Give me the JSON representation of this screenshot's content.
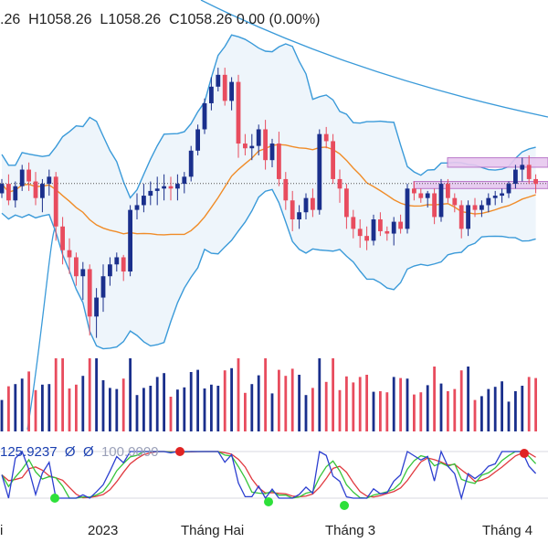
{
  "ohlc_readout": {
    "open_fragment": ".26",
    "high": "H1058.26",
    "low": "L1058.26",
    "close": "C1058.26",
    "change": "0.00 (0.00%)"
  },
  "oscillator_readout": {
    "main_value": "125.9237",
    "symbol_1": "Ø",
    "symbol_2": "Ø",
    "faint_value": "100.0000"
  },
  "x_axis_labels": [
    "i",
    "2023",
    "Tháng Hai",
    "Tháng 3",
    "Tháng 4"
  ],
  "colors": {
    "up_candle": "#1a2f8c",
    "down_candle": "#e84c5e",
    "bollinger_line": "#3a9ad9",
    "bollinger_fill": "#eef5fb",
    "ma_line": "#f08c28",
    "resistance_box": "#e7c8ef",
    "osc_blue": "#2c3fd0",
    "osc_red": "#e0393f",
    "osc_green": "#36c43a",
    "marker_green": "#2ee03a",
    "marker_red": "#e02323"
  },
  "chart_data": {
    "type": "candlestick",
    "candles_ohlc": [
      [
        1050,
        1062,
        1046,
        1058
      ],
      [
        1058,
        1066,
        1040,
        1044
      ],
      [
        1044,
        1060,
        1038,
        1056
      ],
      [
        1056,
        1074,
        1052,
        1070
      ],
      [
        1070,
        1076,
        1052,
        1060
      ],
      [
        1060,
        1068,
        1040,
        1046
      ],
      [
        1046,
        1062,
        1034,
        1058
      ],
      [
        1058,
        1070,
        1048,
        1064
      ],
      [
        1064,
        1068,
        1010,
        1022
      ],
      [
        1022,
        1030,
        990,
        1002
      ],
      [
        1002,
        1012,
        982,
        996
      ],
      [
        996,
        1000,
        972,
        980
      ],
      [
        980,
        992,
        960,
        986
      ],
      [
        986,
        990,
        930,
        946
      ],
      [
        946,
        970,
        928,
        962
      ],
      [
        962,
        990,
        950,
        980
      ],
      [
        980,
        996,
        972,
        990
      ],
      [
        990,
        1000,
        984,
        996
      ],
      [
        996,
        998,
        976,
        984
      ],
      [
        984,
        1040,
        980,
        1036
      ],
      [
        1036,
        1050,
        1028,
        1040
      ],
      [
        1040,
        1058,
        1034,
        1048
      ],
      [
        1048,
        1060,
        1040,
        1052
      ],
      [
        1052,
        1064,
        1040,
        1054
      ],
      [
        1054,
        1066,
        1044,
        1056
      ],
      [
        1056,
        1064,
        1044,
        1054
      ],
      [
        1054,
        1066,
        1044,
        1058
      ],
      [
        1058,
        1068,
        1050,
        1064
      ],
      [
        1064,
        1090,
        1060,
        1086
      ],
      [
        1086,
        1108,
        1082,
        1104
      ],
      [
        1104,
        1130,
        1100,
        1126
      ],
      [
        1126,
        1148,
        1120,
        1140
      ],
      [
        1140,
        1156,
        1136,
        1150
      ],
      [
        1150,
        1156,
        1124,
        1128
      ],
      [
        1128,
        1148,
        1120,
        1144
      ],
      [
        1144,
        1150,
        1080,
        1092
      ],
      [
        1092,
        1100,
        1082,
        1088
      ],
      [
        1088,
        1100,
        1078,
        1090
      ],
      [
        1090,
        1108,
        1082,
        1104
      ],
      [
        1104,
        1112,
        1070,
        1078
      ],
      [
        1078,
        1096,
        1072,
        1092
      ],
      [
        1092,
        1102,
        1056,
        1062
      ],
      [
        1062,
        1068,
        1036,
        1044
      ],
      [
        1044,
        1052,
        1018,
        1028
      ],
      [
        1028,
        1040,
        1020,
        1034
      ],
      [
        1034,
        1050,
        1028,
        1046
      ],
      [
        1046,
        1054,
        1030,
        1036
      ],
      [
        1036,
        1104,
        1032,
        1100
      ],
      [
        1100,
        1106,
        1088,
        1094
      ],
      [
        1094,
        1100,
        1058,
        1062
      ],
      [
        1062,
        1070,
        1042,
        1054
      ],
      [
        1054,
        1058,
        1020,
        1030
      ],
      [
        1030,
        1036,
        1012,
        1020
      ],
      [
        1020,
        1028,
        1004,
        1014
      ],
      [
        1014,
        1022,
        1002,
        1010
      ],
      [
        1010,
        1032,
        1006,
        1028
      ],
      [
        1028,
        1034,
        1014,
        1018
      ],
      [
        1018,
        1022,
        1010,
        1016
      ],
      [
        1016,
        1030,
        1006,
        1026
      ],
      [
        1026,
        1032,
        1016,
        1020
      ],
      [
        1020,
        1058,
        1016,
        1054
      ],
      [
        1054,
        1060,
        1044,
        1050
      ],
      [
        1050,
        1054,
        1042,
        1046
      ],
      [
        1046,
        1052,
        1038,
        1050
      ],
      [
        1050,
        1054,
        1024,
        1030
      ],
      [
        1030,
        1062,
        1026,
        1058
      ],
      [
        1058,
        1062,
        1042,
        1046
      ],
      [
        1046,
        1050,
        1034,
        1040
      ],
      [
        1040,
        1044,
        1012,
        1020
      ],
      [
        1020,
        1044,
        1014,
        1040
      ],
      [
        1040,
        1046,
        1030,
        1036
      ],
      [
        1036,
        1044,
        1030,
        1040
      ],
      [
        1040,
        1050,
        1034,
        1046
      ],
      [
        1046,
        1052,
        1040,
        1048
      ],
      [
        1048,
        1054,
        1042,
        1050
      ],
      [
        1050,
        1060,
        1046,
        1058
      ],
      [
        1058,
        1074,
        1054,
        1070
      ],
      [
        1070,
        1080,
        1060,
        1074
      ],
      [
        1074,
        1082,
        1058,
        1062
      ],
      [
        1062,
        1066,
        1050,
        1058
      ]
    ],
    "resistance_zones": [
      {
        "low": 1072,
        "high": 1080
      },
      {
        "low": 1054,
        "high": 1060
      }
    ],
    "reference_price": 1058.26
  }
}
